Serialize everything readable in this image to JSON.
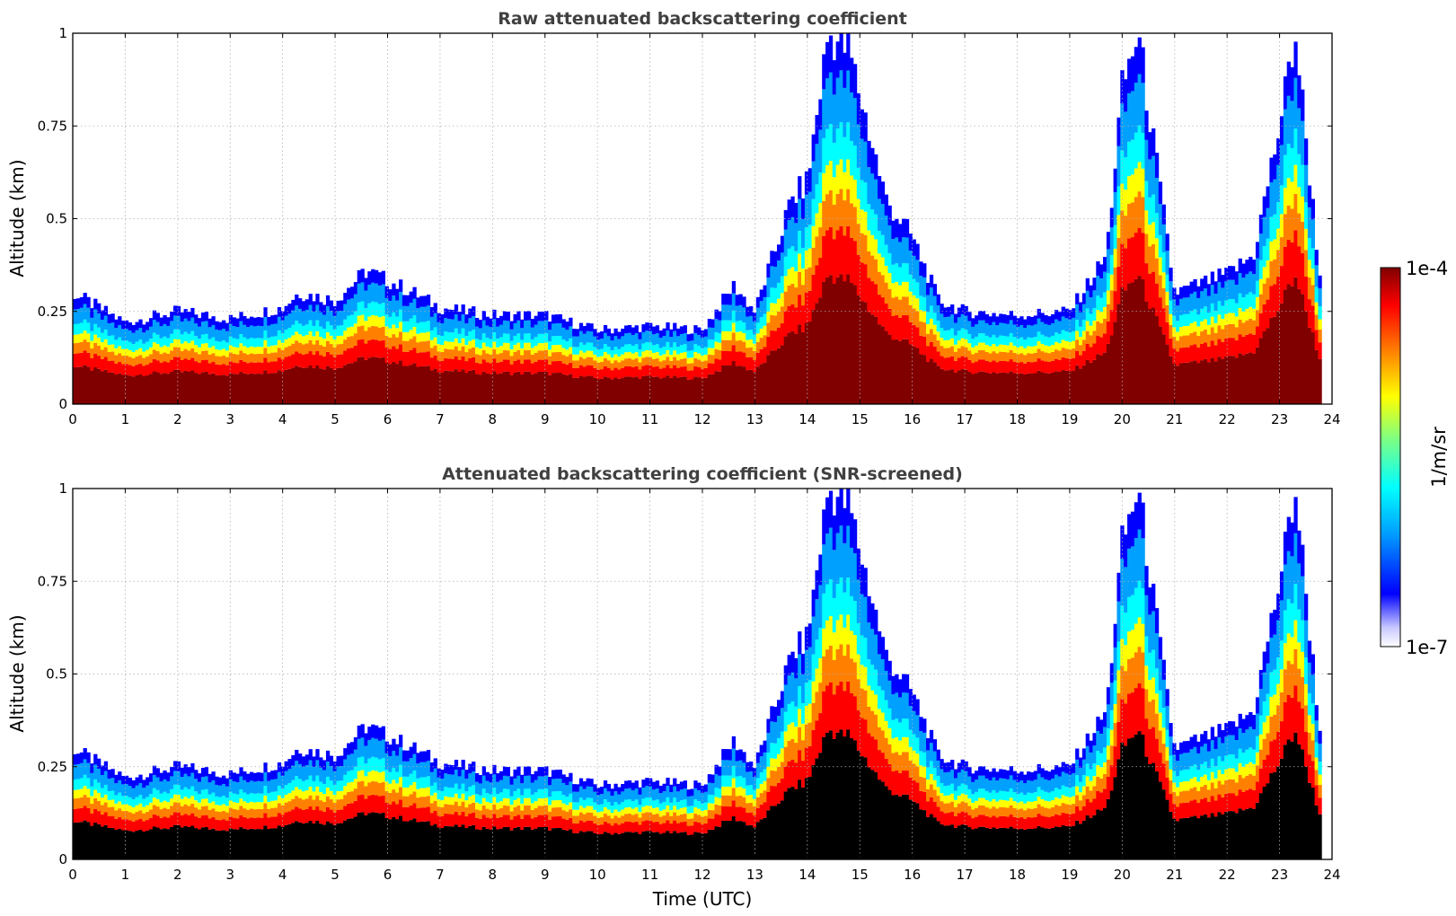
{
  "chart_data": [
    {
      "type": "heatmap",
      "title": "Raw attenuated backscattering coefficient",
      "xlabel": "",
      "ylabel": "Altitude (km)",
      "xlim": [
        0,
        24
      ],
      "ylim": [
        0,
        1
      ],
      "x_ticks": [
        "0",
        "1",
        "2",
        "3",
        "4",
        "5",
        "6",
        "7",
        "8",
        "9",
        "10",
        "11",
        "12",
        "13",
        "14",
        "15",
        "16",
        "17",
        "18",
        "19",
        "20",
        "21",
        "22",
        "23",
        "24"
      ],
      "y_ticks": [
        "0",
        "0.25",
        "0.5",
        "0.75",
        "1"
      ],
      "grid": true,
      "screened": false,
      "layer_top_profile": {
        "time_utc": [
          0,
          1,
          2,
          3,
          4,
          4.3,
          5,
          5.6,
          6.5,
          7,
          8,
          9,
          10,
          11,
          12,
          12.6,
          13,
          13.7,
          14,
          14.4,
          14.8,
          15.5,
          16,
          16.5,
          17,
          18,
          19,
          19.7,
          20,
          20.3,
          21,
          22,
          22.5,
          23,
          23.3,
          23.8
        ],
        "top_km": [
          0.3,
          0.22,
          0.25,
          0.23,
          0.26,
          0.3,
          0.28,
          0.36,
          0.3,
          0.26,
          0.24,
          0.24,
          0.2,
          0.21,
          0.2,
          0.32,
          0.25,
          0.55,
          0.6,
          1.0,
          0.95,
          0.55,
          0.45,
          0.28,
          0.25,
          0.24,
          0.25,
          0.4,
          0.85,
          1.0,
          0.3,
          0.35,
          0.4,
          0.75,
          1.0,
          0.3
        ]
      }
    },
    {
      "type": "heatmap",
      "title": "Attenuated backscattering coefficient (SNR-screened)",
      "xlabel": "Time (UTC)",
      "ylabel": "Altitude (km)",
      "xlim": [
        0,
        24
      ],
      "ylim": [
        0,
        1
      ],
      "x_ticks": [
        "0",
        "1",
        "2",
        "3",
        "4",
        "5",
        "6",
        "7",
        "8",
        "9",
        "10",
        "11",
        "12",
        "13",
        "14",
        "15",
        "16",
        "17",
        "18",
        "19",
        "20",
        "21",
        "22",
        "23",
        "24"
      ],
      "y_ticks": [
        "0",
        "0.25",
        "0.5",
        "0.75",
        "1"
      ],
      "grid": true,
      "screened": true
    }
  ],
  "colorbar": {
    "label": "1/m/sr",
    "max_label": "1e-4",
    "min_label": "1e-7",
    "scale": "log",
    "colormap": [
      "#ffffff",
      "#c8c8ff",
      "#0000ff",
      "#00a0ff",
      "#00ffff",
      "#80ff80",
      "#ffff00",
      "#ff8000",
      "#ff0000",
      "#800000"
    ]
  }
}
